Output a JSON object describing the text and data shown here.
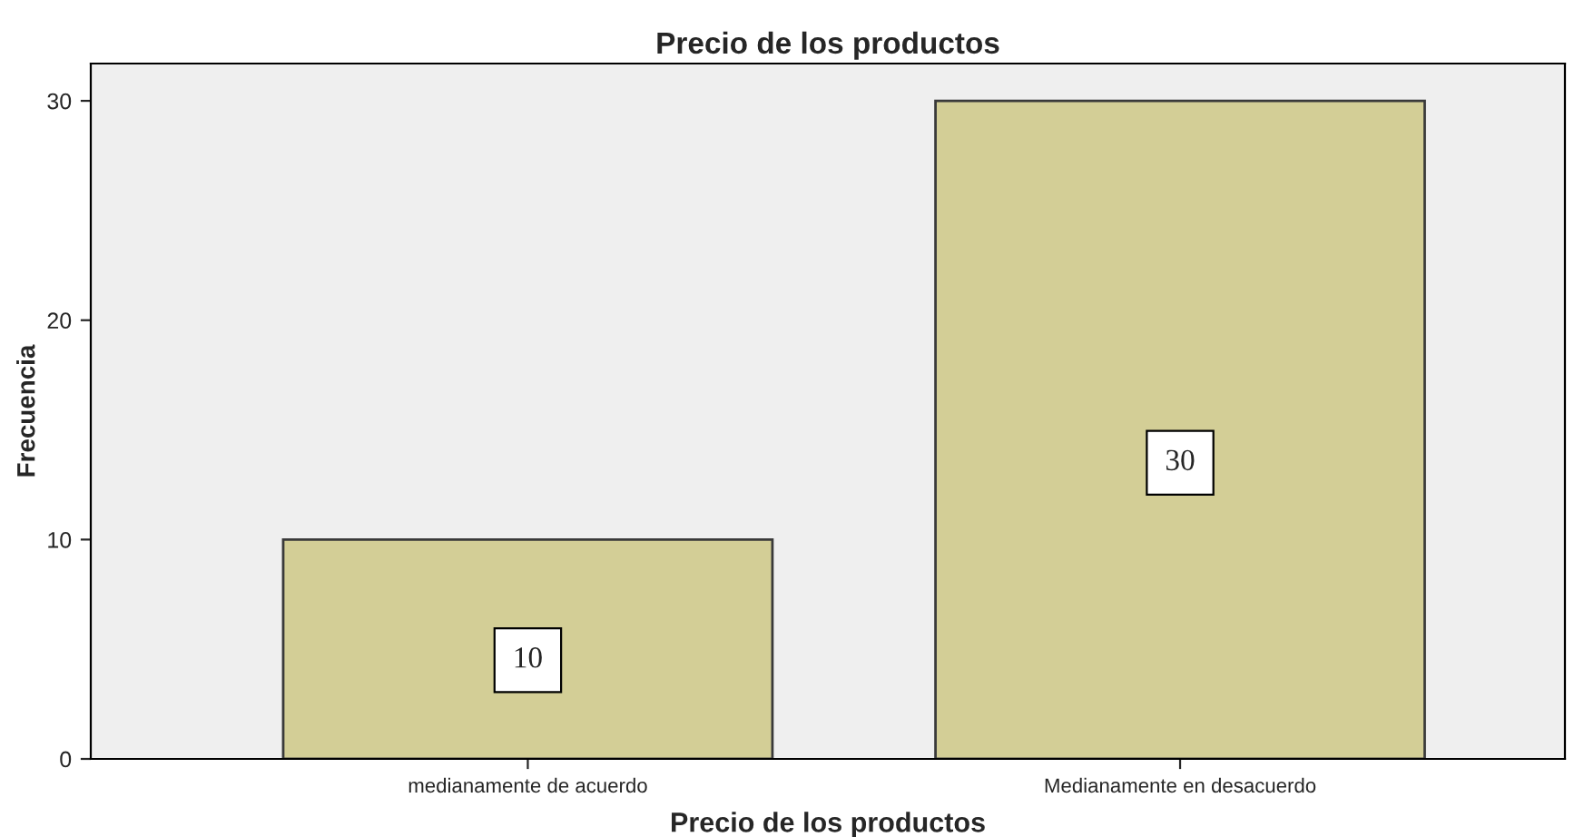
{
  "chart_data": {
    "type": "bar",
    "title": "Precio de los productos",
    "xlabel": "Precio de los productos",
    "ylabel": "Frecuencia",
    "categories": [
      "medianamente de acuerdo",
      "Medianamente en desacuerdo"
    ],
    "values": [
      10,
      30
    ],
    "color": "#d3ce96",
    "ylim": [
      0,
      31.7
    ],
    "yticks": [
      0,
      10,
      20,
      30
    ],
    "grid": false,
    "data_labels": true
  }
}
